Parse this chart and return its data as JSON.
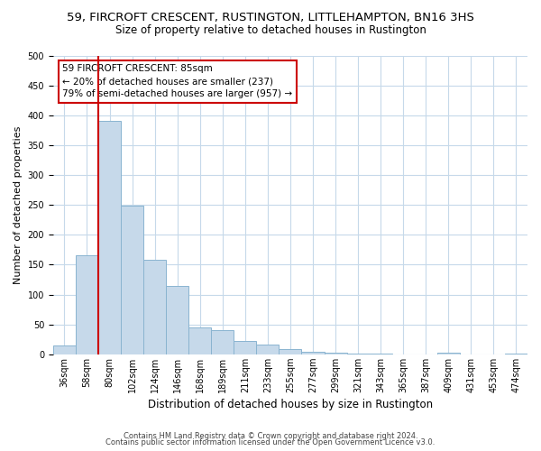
{
  "title": "59, FIRCROFT CRESCENT, RUSTINGTON, LITTLEHAMPTON, BN16 3HS",
  "subtitle": "Size of property relative to detached houses in Rustington",
  "xlabel": "Distribution of detached houses by size in Rustington",
  "ylabel": "Number of detached properties",
  "bin_labels": [
    "36sqm",
    "58sqm",
    "80sqm",
    "102sqm",
    "124sqm",
    "146sqm",
    "168sqm",
    "189sqm",
    "211sqm",
    "233sqm",
    "255sqm",
    "277sqm",
    "299sqm",
    "321sqm",
    "343sqm",
    "365sqm",
    "387sqm",
    "409sqm",
    "431sqm",
    "453sqm",
    "474sqm"
  ],
  "bar_heights": [
    15,
    165,
    390,
    248,
    158,
    115,
    45,
    40,
    22,
    16,
    8,
    4,
    2,
    1,
    1,
    0,
    0,
    3,
    0,
    0,
    1
  ],
  "bar_color": "#c6d9ea",
  "bar_edge_color": "#8ab4d0",
  "vline_color": "#cc0000",
  "annotation_line1": "59 FIRCROFT CRESCENT: 85sqm",
  "annotation_line2": "← 20% of detached houses are smaller (237)",
  "annotation_line3": "79% of semi-detached houses are larger (957) →",
  "annotation_box_color": "#ffffff",
  "annotation_box_edge": "#cc0000",
  "ylim": [
    0,
    500
  ],
  "yticks": [
    0,
    50,
    100,
    150,
    200,
    250,
    300,
    350,
    400,
    450,
    500
  ],
  "footer1": "Contains HM Land Registry data © Crown copyright and database right 2024.",
  "footer2": "Contains public sector information licensed under the Open Government Licence v3.0.",
  "bg_color": "#ffffff",
  "grid_color": "#c6d9ea",
  "title_fontsize": 9.5,
  "subtitle_fontsize": 8.5,
  "xlabel_fontsize": 8.5,
  "ylabel_fontsize": 8,
  "tick_fontsize": 7,
  "footer_fontsize": 6
}
